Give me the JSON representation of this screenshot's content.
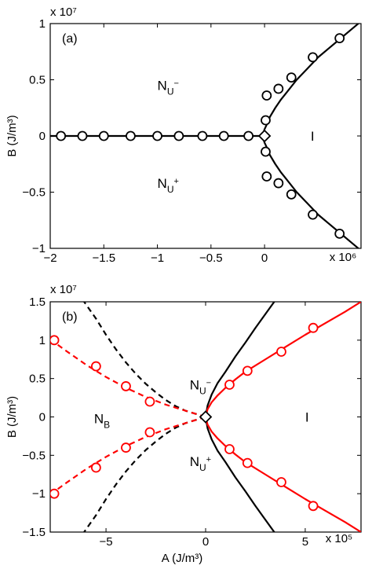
{
  "chart_data": [
    {
      "type": "line",
      "panel_label": "(a)",
      "xlabel": "",
      "ylabel": "B (J/m³)",
      "x_exponent": "x 10⁶",
      "y_exponent": "x 10⁷",
      "xlim": [
        -2.0,
        0.9
      ],
      "ylim": [
        -1.0,
        1.0
      ],
      "x_ticks": [
        -2,
        -1.5,
        -1,
        -0.5,
        0
      ],
      "x_tick_labels": [
        "−2",
        "−1.5",
        "−1",
        "−0.5",
        "0"
      ],
      "y_ticks": [
        -1,
        -0.5,
        0,
        0.5,
        1
      ],
      "y_tick_labels": [
        "−1",
        "−0.5",
        "0",
        "0.5",
        "1"
      ],
      "region_labels": [
        {
          "main": "N",
          "sub": "U",
          "sup": "−",
          "x": -1.0,
          "y": 0.45
        },
        {
          "main": "N",
          "sub": "U",
          "sup": "+",
          "x": -1.0,
          "y": -0.42
        },
        {
          "main": "I",
          "sub": "",
          "sup": "",
          "x": 0.43,
          "y": 0.0
        }
      ],
      "series": [
        {
          "color": "#000000",
          "dash": "solid",
          "line": true,
          "x": [
            -2.0,
            -0.02
          ],
          "y": [
            0,
            0
          ]
        },
        {
          "color": "#000000",
          "dash": "solid",
          "line": true,
          "type": "curve",
          "x": [
            -0.02,
            0.0,
            0.02,
            0.05,
            0.1,
            0.15,
            0.2,
            0.3,
            0.4,
            0.5,
            0.6,
            0.7,
            0.8,
            0.9
          ],
          "y": [
            0,
            0.06,
            0.1,
            0.17,
            0.25,
            0.32,
            0.38,
            0.5,
            0.6,
            0.7,
            0.78,
            0.86,
            0.94,
            1.02
          ]
        },
        {
          "color": "#000000",
          "dash": "solid",
          "line": true,
          "type": "curve",
          "x": [
            -0.02,
            0.0,
            0.02,
            0.05,
            0.1,
            0.15,
            0.2,
            0.3,
            0.4,
            0.5,
            0.6,
            0.7,
            0.8,
            0.9
          ],
          "y": [
            0,
            -0.06,
            -0.1,
            -0.17,
            -0.25,
            -0.32,
            -0.38,
            -0.5,
            -0.6,
            -0.7,
            -0.78,
            -0.86,
            -0.94,
            -1.02
          ]
        },
        {
          "color": "#000000",
          "marker": "circle",
          "line": false,
          "x": [
            -1.9,
            -1.7,
            -1.5,
            -1.25,
            -1.0,
            -0.8,
            -0.58,
            -0.38,
            -0.15
          ],
          "y": [
            0,
            0,
            0,
            0,
            0,
            0,
            0,
            0,
            0
          ]
        },
        {
          "color": "#000000",
          "marker": "circle",
          "line": false,
          "x": [
            0.01,
            0.02,
            0.13,
            0.25,
            0.45,
            0.7
          ],
          "y": [
            0.14,
            0.36,
            0.42,
            0.52,
            0.7,
            0.87
          ]
        },
        {
          "color": "#000000",
          "marker": "circle",
          "line": false,
          "x": [
            0.01,
            0.02,
            0.13,
            0.25,
            0.45,
            0.7
          ],
          "y": [
            -0.14,
            -0.36,
            -0.42,
            -0.52,
            -0.7,
            -0.87
          ]
        },
        {
          "color": "#000000",
          "marker": "diamond",
          "line": false,
          "x": [
            0.0
          ],
          "y": [
            0.0
          ]
        }
      ]
    },
    {
      "type": "line",
      "panel_label": "(b)",
      "xlabel": "A (J/m³)",
      "ylabel": "B (J/m³)",
      "x_exponent": "x 10⁵",
      "y_exponent": "x 10⁷",
      "xlim": [
        -7.8,
        7.8
      ],
      "ylim": [
        -1.5,
        1.5
      ],
      "x_ticks": [
        -5,
        0,
        5
      ],
      "x_tick_labels": [
        "−5",
        "0",
        "5"
      ],
      "y_ticks": [
        -1.5,
        -1,
        -0.5,
        0,
        0.5,
        1,
        1.5
      ],
      "y_tick_labels": [
        "−1.5",
        "−1",
        "−0.5",
        "0",
        "0.5",
        "1",
        "1.5"
      ],
      "region_labels": [
        {
          "main": "N",
          "sub": "U",
          "sup": "−",
          "x": -0.8,
          "y": 0.42
        },
        {
          "main": "N",
          "sub": "U",
          "sup": "+",
          "x": -0.8,
          "y": -0.58
        },
        {
          "main": "N",
          "sub": "B",
          "sup": "",
          "x": -5.6,
          "y": -0.02
        },
        {
          "main": "I",
          "sub": "",
          "sup": "",
          "x": 5.0,
          "y": 0.0
        }
      ],
      "series": [
        {
          "color": "#000000",
          "dash": "dashed",
          "line": true,
          "x": [
            0,
            -0.5,
            -1,
            -1.5,
            -2,
            -2.5,
            -3,
            -3.5,
            -4,
            -4.5,
            -5,
            -5.5,
            -6.1
          ],
          "y": [
            0,
            0.04,
            0.08,
            0.14,
            0.22,
            0.32,
            0.43,
            0.56,
            0.71,
            0.88,
            1.07,
            1.28,
            1.5
          ]
        },
        {
          "color": "#000000",
          "dash": "dashed",
          "line": true,
          "x": [
            0,
            -0.5,
            -1,
            -1.5,
            -2,
            -2.5,
            -3,
            -3.5,
            -4,
            -4.5,
            -5,
            -5.5,
            -6.1
          ],
          "y": [
            0,
            -0.04,
            -0.08,
            -0.14,
            -0.22,
            -0.32,
            -0.43,
            -0.56,
            -0.71,
            -0.88,
            -1.07,
            -1.28,
            -1.5
          ]
        },
        {
          "color": "#ff0000",
          "dash": "dashed",
          "line": true,
          "x": [
            0,
            -1,
            -2,
            -3,
            -4,
            -5,
            -6,
            -7,
            -8
          ],
          "y": [
            0,
            0.08,
            0.16,
            0.26,
            0.38,
            0.52,
            0.68,
            0.86,
            1.05
          ]
        },
        {
          "color": "#ff0000",
          "dash": "dashed",
          "line": true,
          "x": [
            0,
            -1,
            -2,
            -3,
            -4,
            -5,
            -6,
            -7,
            -8
          ],
          "y": [
            0,
            -0.08,
            -0.16,
            -0.26,
            -0.38,
            -0.52,
            -0.68,
            -0.86,
            -1.05
          ]
        },
        {
          "color": "#000000",
          "dash": "solid",
          "line": true,
          "x": [
            0,
            0.1,
            0.3,
            0.6,
            1.0,
            1.5,
            2.0,
            2.5,
            3.0,
            3.5
          ],
          "y": [
            0,
            0.15,
            0.29,
            0.44,
            0.59,
            0.79,
            0.97,
            1.16,
            1.34,
            1.52
          ]
        },
        {
          "color": "#000000",
          "dash": "solid",
          "line": true,
          "x": [
            0,
            0.1,
            0.3,
            0.6,
            1.0,
            1.5,
            2.0,
            2.5,
            3.0,
            3.5
          ],
          "y": [
            0,
            -0.15,
            -0.29,
            -0.44,
            -0.59,
            -0.79,
            -0.97,
            -1.16,
            -1.34,
            -1.52
          ]
        },
        {
          "color": "#ff0000",
          "dash": "solid",
          "line": true,
          "x": [
            0,
            0.1,
            0.3,
            0.6,
            1.0,
            1.5,
            2.0,
            3.0,
            4.0,
            5.0,
            6.0,
            7.0,
            7.8
          ],
          "y": [
            0,
            0.1,
            0.19,
            0.28,
            0.38,
            0.49,
            0.59,
            0.75,
            0.91,
            1.07,
            1.22,
            1.37,
            1.5
          ]
        },
        {
          "color": "#ff0000",
          "dash": "solid",
          "line": true,
          "x": [
            0,
            0.1,
            0.3,
            0.6,
            1.0,
            1.5,
            2.0,
            3.0,
            4.0,
            5.0,
            6.0,
            7.0,
            7.8
          ],
          "y": [
            0,
            -0.1,
            -0.19,
            -0.28,
            -0.38,
            -0.49,
            -0.59,
            -0.75,
            -0.91,
            -1.07,
            -1.22,
            -1.37,
            -1.5
          ]
        },
        {
          "color": "#ff0000",
          "marker": "circle",
          "line": false,
          "x": [
            -7.6,
            -5.5,
            -4.0,
            -2.8,
            1.2,
            2.1,
            3.8,
            5.4
          ],
          "y": [
            1.0,
            0.66,
            0.4,
            0.2,
            0.42,
            0.6,
            0.85,
            1.16
          ]
        },
        {
          "color": "#ff0000",
          "marker": "circle",
          "line": false,
          "x": [
            -7.6,
            -5.5,
            -4.0,
            -2.8,
            1.2,
            2.1,
            3.8,
            5.4
          ],
          "y": [
            -1.0,
            -0.66,
            -0.4,
            -0.2,
            -0.42,
            -0.6,
            -0.85,
            -1.16
          ]
        },
        {
          "color": "#000000",
          "marker": "diamond",
          "line": false,
          "x": [
            0.0
          ],
          "y": [
            0.0
          ]
        }
      ]
    }
  ]
}
